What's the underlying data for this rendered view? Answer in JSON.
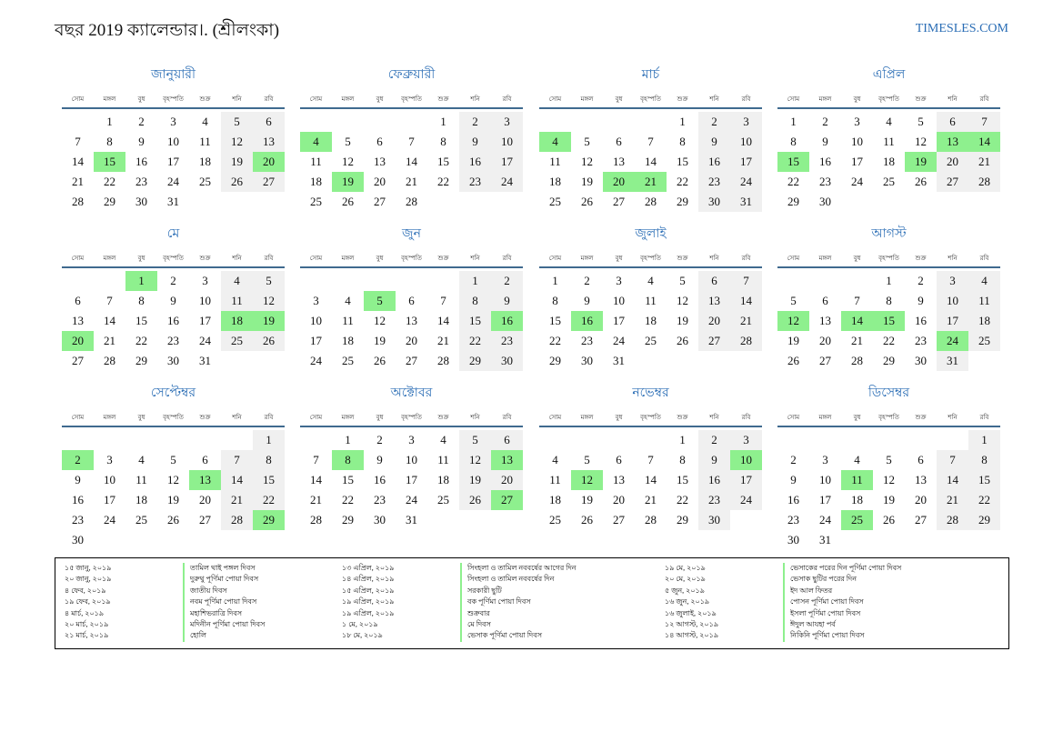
{
  "title": "বছর 2019 ক্যালেন্ডার।. (শ্রীলংকা)",
  "brand": "TIMESLES.COM",
  "weekdays": [
    "সোম",
    "মঙ্গল",
    "বুধ",
    "বৃহস্পতি",
    "শুক্র",
    "শনি",
    "রবি"
  ],
  "colors": {
    "accent": "#2a6db5",
    "holiday": "#8ef08e",
    "weekend": "#f0f0f0",
    "rule": "#3f6a8f"
  },
  "months": [
    {
      "name": "জানুয়ারী",
      "offset": 1,
      "days": 31,
      "holidays": [
        15,
        20
      ]
    },
    {
      "name": "ফেব্রুয়ারী",
      "offset": 4,
      "days": 28,
      "holidays": [
        4,
        19
      ]
    },
    {
      "name": "মার্চ",
      "offset": 4,
      "days": 31,
      "holidays": [
        4,
        20,
        21
      ]
    },
    {
      "name": "এপ্রিল",
      "offset": 0,
      "days": 30,
      "holidays": [
        13,
        14,
        15,
        19
      ]
    },
    {
      "name": "মে",
      "offset": 2,
      "days": 31,
      "holidays": [
        1,
        18,
        19,
        20
      ]
    },
    {
      "name": "জুন",
      "offset": 5,
      "days": 30,
      "holidays": [
        5,
        16
      ]
    },
    {
      "name": "জুলাই",
      "offset": 0,
      "days": 31,
      "holidays": [
        16
      ]
    },
    {
      "name": "আগস্ট",
      "offset": 3,
      "days": 31,
      "holidays": [
        12,
        14,
        15,
        24
      ]
    },
    {
      "name": "সেপ্টেম্বর",
      "offset": 6,
      "days": 30,
      "holidays": [
        2,
        13,
        29
      ]
    },
    {
      "name": "অক্টোবর",
      "offset": 1,
      "days": 31,
      "holidays": [
        8,
        13,
        27
      ]
    },
    {
      "name": "নভেম্বর",
      "offset": 4,
      "days": 30,
      "holidays": [
        10,
        12
      ]
    },
    {
      "name": "ডিসেম্বর",
      "offset": 6,
      "days": 31,
      "holidays": [
        11,
        25
      ]
    }
  ],
  "holiday_list": [
    [
      {
        "date": "১৫ জানু, ২০১৯",
        "name": "তামিল থাই পঙ্গল দিবস"
      },
      {
        "date": "২০ জানু, ২০১৯",
        "name": "দুরুথু পূর্ণিমা পোয়া দিবস"
      },
      {
        "date": "৪ ফেব, ২০১৯",
        "name": "জাতীয় দিবস"
      },
      {
        "date": "১৯ ফেব, ২০১৯",
        "name": "নবম পূর্ণিমা পোয়া দিবস"
      },
      {
        "date": "৪ মার্চ, ২০১৯",
        "name": "মহাশিভরাত্রি দিবস"
      },
      {
        "date": "২০ মার্চ, ২০১৯",
        "name": "মদিনীন পূর্ণিমা পোয়া দিবস"
      },
      {
        "date": "২১ মার্চ, ২০১৯",
        "name": "হোলি"
      }
    ],
    [
      {
        "date": "১৩ এপ্রিল, ২০১৯",
        "name": "সিংহলা ও তামিল নববর্ষের আগের দিন"
      },
      {
        "date": "১৪ এপ্রিল, ২০১৯",
        "name": "সিংহলা ও তামিল নববর্ষের দিন"
      },
      {
        "date": "১৫ এপ্রিল, ২০১৯",
        "name": "সরকারী ছুটি"
      },
      {
        "date": "১৯ এপ্রিল, ২০১৯",
        "name": "বক পূর্ণিমা পোয়া দিবস"
      },
      {
        "date": "১৯ এপ্রিল, ২০১৯",
        "name": "শুক্রবার"
      },
      {
        "date": "১ মে, ২০১৯",
        "name": "মে দিবস"
      },
      {
        "date": "১৮ মে, ২০১৯",
        "name": "ভেসাক পূর্ণিমা পোয়া দিবস"
      }
    ],
    [
      {
        "date": "১৯ মে, ২০১৯",
        "name": "ভেসাকের পরের দিন পূর্ণিমা পোয়া দিবস"
      },
      {
        "date": "২০ মে, ২০১৯",
        "name": "ভেসাক ছুটির পরের দিন"
      },
      {
        "date": "৫ জুন, ২০১৯",
        "name": "ইদ আল ফিতর"
      },
      {
        "date": "১৬ জুন, ২০১৯",
        "name": "পোসন পূর্ণিমা পোয়া দিবস"
      },
      {
        "date": "১৬ জুলাই, ২০১৯",
        "name": "ইসলা পূর্ণিমা পোয়া দিবস"
      },
      {
        "date": "১২ আগস্ট, ২০১৯",
        "name": "ঈদুল আযহা পর্ব"
      },
      {
        "date": "১৪ আগস্ট, ২০১৯",
        "name": "নিকিনি পূর্ণিমা পোয়া দিবস"
      }
    ]
  ]
}
